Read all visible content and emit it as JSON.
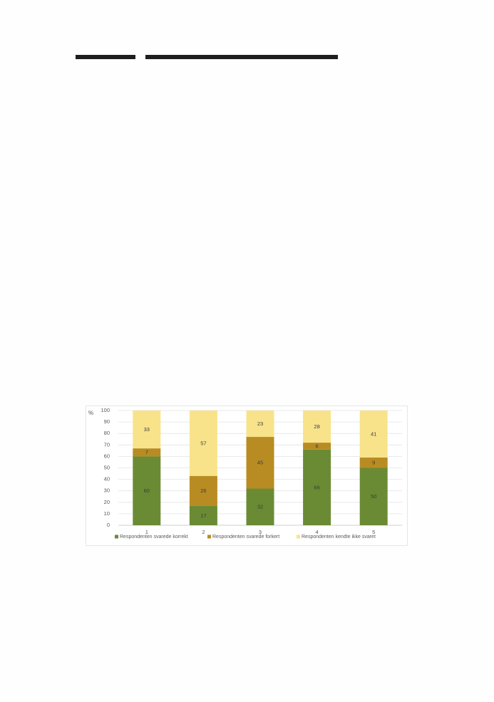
{
  "chart_data": {
    "type": "bar",
    "stacked": true,
    "title": "",
    "xlabel": "",
    "ylabel": "%",
    "ylim": [
      0,
      100
    ],
    "yticks": [
      0,
      10,
      20,
      30,
      40,
      50,
      60,
      70,
      80,
      90,
      100
    ],
    "categories": [
      "1",
      "2",
      "3",
      "4",
      "5"
    ],
    "grid": true,
    "legend_position": "bottom",
    "series": [
      {
        "name": "Respondenten svarede korrekt",
        "color": "#6a8b34",
        "values": [
          60,
          17,
          32,
          66,
          50
        ]
      },
      {
        "name": "Respondenten svarede forkert",
        "color": "#b88c22",
        "values": [
          7,
          26,
          45,
          6,
          9
        ]
      },
      {
        "name": "Respondenten kendte ikke svaret",
        "color": "#f8e38a",
        "values": [
          33,
          57,
          23,
          28,
          41
        ]
      }
    ]
  }
}
